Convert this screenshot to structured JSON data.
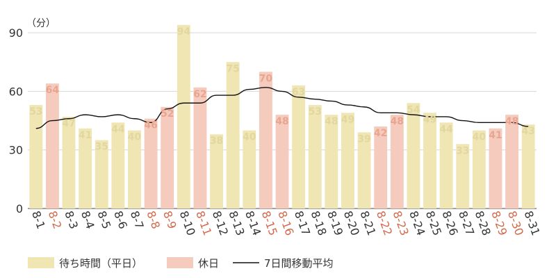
{
  "chart_data": {
    "type": "bar",
    "unit_label": "（分）",
    "categories": [
      "8-1",
      "8-2",
      "8-3",
      "8-4",
      "8-5",
      "8-6",
      "8-7",
      "8-8",
      "8-9",
      "8-10",
      "8-11",
      "8-12",
      "8-13",
      "8-14",
      "8-15",
      "8-16",
      "8-17",
      "8-18",
      "8-19",
      "8-20",
      "8-21",
      "8-22",
      "8-23",
      "8-24",
      "8-25",
      "8-26",
      "8-27",
      "8-28",
      "8-29",
      "8-30",
      "8-31"
    ],
    "values": [
      53,
      64,
      47,
      41,
      35,
      44,
      40,
      46,
      52,
      94,
      62,
      38,
      75,
      40,
      70,
      48,
      63,
      53,
      48,
      49,
      39,
      42,
      48,
      54,
      49,
      44,
      33,
      40,
      41,
      48,
      43
    ],
    "holiday_flags": [
      false,
      true,
      false,
      false,
      false,
      false,
      false,
      true,
      true,
      false,
      true,
      false,
      false,
      false,
      true,
      true,
      false,
      false,
      false,
      false,
      false,
      true,
      true,
      false,
      false,
      false,
      false,
      false,
      true,
      true,
      false
    ],
    "moving_average": {
      "name": "7日間移動平均",
      "values": [
        41,
        45,
        46,
        48,
        47,
        48,
        46,
        44,
        51,
        54,
        54,
        58,
        58,
        61,
        62,
        60,
        57,
        56,
        55,
        53,
        52,
        49,
        49,
        48,
        47,
        47,
        45,
        44,
        44,
        44,
        42
      ]
    },
    "legend": [
      {
        "label": "待ち時間（平日）",
        "color": "#f0e6b4"
      },
      {
        "label": "休日",
        "color": "#f5cbbd"
      },
      {
        "label": "7日間移動平均",
        "color": "#111111"
      }
    ],
    "ylim": [
      0,
      100
    ],
    "yticks": [
      0,
      30,
      60,
      90
    ],
    "colors": {
      "weekday_bar": "#f0e6b4",
      "holiday_bar": "#f5cbbd",
      "weekday_label": "#e3d7a0",
      "holiday_label": "#e9a590",
      "weekday_tick": "#333333",
      "holiday_tick": "#d2694b",
      "line": "#111111"
    },
    "grid": true,
    "legend_position": "bottom-left"
  }
}
